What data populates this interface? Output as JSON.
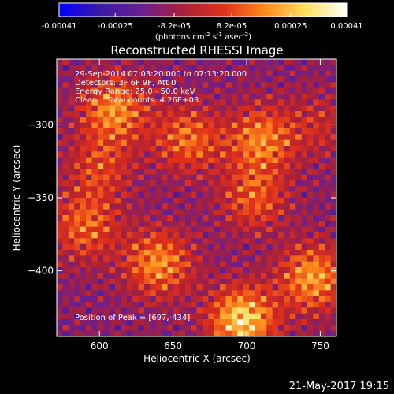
{
  "chart_data": {
    "type": "heatmap",
    "title": "Reconstructed RHESSI Image",
    "xlabel": "Heliocentric X (arcsec)",
    "ylabel": "Heliocentric Y (arcsec)",
    "xlim": [
      571,
      761
    ],
    "ylim": [
      -445,
      -255
    ],
    "x_ticks": [
      600,
      650,
      700,
      750
    ],
    "y_ticks": [
      -300,
      -350,
      -400
    ],
    "annotations": [
      "29-Sep-2014 07:03:20.000 to 07:13:20.000",
      "Detectors: 3F 6F 9F, Att 0",
      "Energy Range: 25.0 - 50.0 keV",
      "Clean    Total counts: 4.26E+03"
    ],
    "peak_label": "Position of Peak = [697,-434]",
    "peak": [
      697,
      -434
    ],
    "colorbar": {
      "range": [
        -0.00041,
        0.00041
      ],
      "ticks": [
        "-0.00041",
        "-0.00025",
        "-8.2e-05",
        "8.2e-05",
        "0.00025",
        "0.00041"
      ],
      "tick_values": [
        -0.00041,
        -0.00025,
        -8.2e-05,
        8.2e-05,
        0.00025,
        0.00041
      ],
      "unit_parts": [
        "(photons cm",
        "-2",
        " s",
        "-1",
        " asec",
        "-2",
        ")"
      ],
      "colormap": [
        "#0000ff",
        "#3b1aa8",
        "#6a1f8f",
        "#a8203a",
        "#e0301a",
        "#ff8a1c",
        "#ffe060",
        "#ffffff"
      ]
    },
    "grid": false,
    "blobs": [
      {
        "x": 610,
        "y": -290,
        "v": 0.0003
      },
      {
        "x": 660,
        "y": -310,
        "v": 0.00025
      },
      {
        "x": 710,
        "y": -310,
        "v": 0.00028
      },
      {
        "x": 705,
        "y": -350,
        "v": 0.00022
      },
      {
        "x": 590,
        "y": -370,
        "v": 0.00024
      },
      {
        "x": 640,
        "y": -395,
        "v": 0.0003
      },
      {
        "x": 697,
        "y": -434,
        "v": 0.00041
      },
      {
        "x": 745,
        "y": -405,
        "v": 0.00032
      },
      {
        "x": 600,
        "y": -330,
        "v": 0.00018
      },
      {
        "x": 750,
        "y": -300,
        "v": 0.00012
      }
    ]
  },
  "timestamp": "21-May-2017 19:15"
}
